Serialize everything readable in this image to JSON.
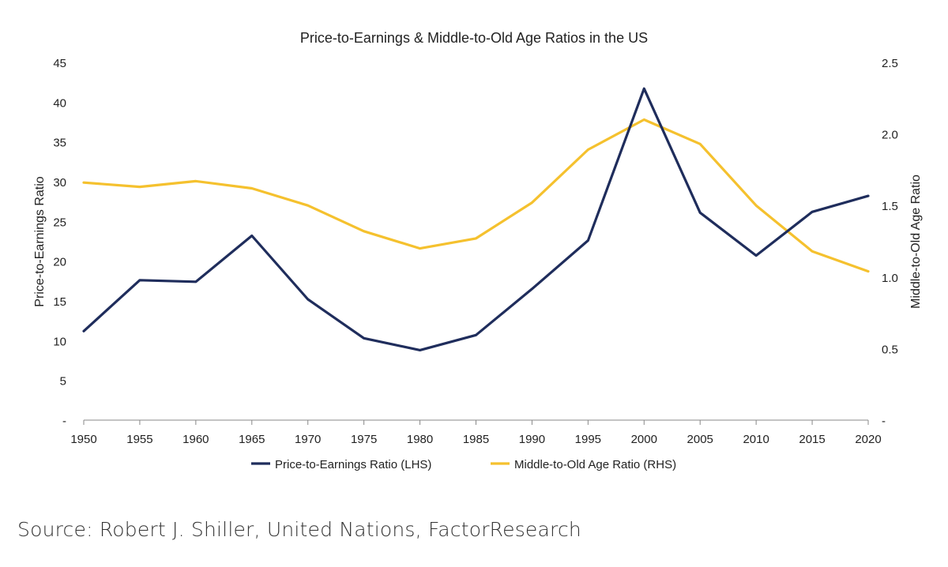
{
  "chart_data": {
    "type": "line",
    "title": "Price-to-Earnings & Middle-to-Old Age Ratios in the US",
    "x": [
      "1950",
      "1955",
      "1960",
      "1965",
      "1970",
      "1975",
      "1980",
      "1985",
      "1990",
      "1995",
      "2000",
      "2005",
      "2010",
      "2015",
      "2020"
    ],
    "y_left_label": "Price-to-Earnings Ratio",
    "y_right_label": "Middle-to-Old Age Ratio",
    "y_left_ticks": [
      "-",
      "5",
      "10",
      "15",
      "20",
      "25",
      "30",
      "35",
      "40",
      "45"
    ],
    "y_left_lim": [
      0,
      45
    ],
    "y_right_ticks": [
      "-",
      "0.5",
      "1.0",
      "1.5",
      "2.0",
      "2.5"
    ],
    "y_right_lim": [
      0,
      2.5
    ],
    "grid": false,
    "legend_position": "bottom",
    "series": [
      {
        "name": "Price-to-Earnings Ratio (LHS)",
        "axis": "left",
        "color": "#1f2d5c",
        "values": [
          11.2,
          17.6,
          17.4,
          23.2,
          15.2,
          10.3,
          8.8,
          10.7,
          16.5,
          22.6,
          41.7,
          26.1,
          20.7,
          26.2,
          28.2
        ]
      },
      {
        "name": "Middle-to-Old Age Ratio (RHS)",
        "axis": "right",
        "color": "#f5c12e",
        "values": [
          1.66,
          1.63,
          1.67,
          1.62,
          1.5,
          1.32,
          1.2,
          1.27,
          1.52,
          1.89,
          2.1,
          1.93,
          1.5,
          1.18,
          1.04
        ]
      }
    ]
  },
  "footer": {
    "source": "Source: Robert J. Shiller, United Nations, FactorResearch"
  }
}
